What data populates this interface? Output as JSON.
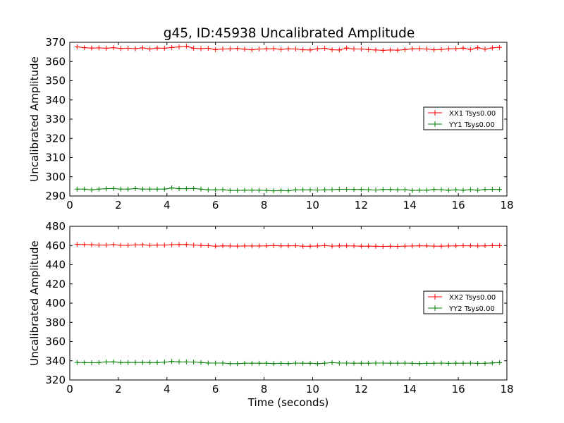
{
  "figure": {
    "title": "g45, ID:45938 Uncalibrated Amplitude"
  },
  "chart_data": [
    {
      "type": "line",
      "title": "g45, ID:45938 Uncalibrated Amplitude",
      "xlabel": "",
      "ylabel": "Uncalibrated Amplitude",
      "xlim": [
        0,
        18
      ],
      "ylim": [
        290,
        370
      ],
      "xticks": [
        0,
        2,
        4,
        6,
        8,
        10,
        12,
        14,
        16,
        18
      ],
      "yticks": [
        290,
        300,
        310,
        320,
        330,
        340,
        350,
        360,
        370
      ],
      "grid": false,
      "legend_position": "center-right",
      "x": [
        0.3,
        0.6,
        0.9,
        1.2,
        1.5,
        1.8,
        2.1,
        2.4,
        2.7,
        3.0,
        3.3,
        3.6,
        3.9,
        4.2,
        4.5,
        4.8,
        5.1,
        5.4,
        5.7,
        6.0,
        6.3,
        6.6,
        6.9,
        7.2,
        7.5,
        7.8,
        8.1,
        8.4,
        8.7,
        9.0,
        9.3,
        9.6,
        9.9,
        10.2,
        10.5,
        10.8,
        11.1,
        11.4,
        11.7,
        12.0,
        12.3,
        12.6,
        12.9,
        13.2,
        13.5,
        13.8,
        14.1,
        14.4,
        14.7,
        15.0,
        15.3,
        15.6,
        15.9,
        16.2,
        16.5,
        16.8,
        17.1,
        17.4,
        17.7
      ],
      "series": [
        {
          "name": "XX1 Tsys0.00",
          "color": "#ff0000",
          "values": [
            367.6,
            367.2,
            367.0,
            367.1,
            366.9,
            367.2,
            366.8,
            366.9,
            366.7,
            367.1,
            366.5,
            367.0,
            366.9,
            367.3,
            367.6,
            368.0,
            366.9,
            366.7,
            366.9,
            366.2,
            366.5,
            366.6,
            366.8,
            366.4,
            366.1,
            366.5,
            366.6,
            366.7,
            366.3,
            366.6,
            366.5,
            366.1,
            366.0,
            366.6,
            366.9,
            366.1,
            366.0,
            367.0,
            366.5,
            366.5,
            366.2,
            366.0,
            365.8,
            366.0,
            365.9,
            366.2,
            366.6,
            366.7,
            366.5,
            366.1,
            366.3,
            366.6,
            366.7,
            367.0,
            366.3,
            367.2,
            366.4,
            367.1,
            367.4
          ]
        },
        {
          "name": "YY1 Tsys0.00",
          "color": "#008000",
          "values": [
            293.6,
            293.6,
            293.2,
            293.6,
            293.8,
            293.9,
            293.6,
            293.6,
            293.9,
            293.6,
            293.6,
            293.6,
            293.6,
            294.2,
            293.8,
            293.8,
            293.9,
            293.6,
            293.2,
            293.2,
            293.3,
            292.9,
            292.9,
            293.0,
            293.0,
            293.0,
            292.9,
            292.7,
            292.9,
            292.7,
            293.2,
            293.2,
            293.2,
            293.1,
            293.2,
            293.3,
            293.5,
            293.5,
            293.4,
            293.4,
            293.3,
            293.1,
            293.4,
            293.4,
            293.2,
            293.3,
            292.9,
            293.0,
            293.0,
            293.4,
            293.3,
            293.0,
            293.2,
            293.0,
            293.3,
            293.0,
            293.4,
            293.5,
            293.4
          ]
        }
      ]
    },
    {
      "type": "line",
      "title": "",
      "xlabel": "Time (seconds)",
      "ylabel": "Uncalibrated Amplitude",
      "xlim": [
        0,
        18
      ],
      "ylim": [
        320,
        480
      ],
      "xticks": [
        0,
        2,
        4,
        6,
        8,
        10,
        12,
        14,
        16,
        18
      ],
      "yticks": [
        320,
        340,
        360,
        380,
        400,
        420,
        440,
        460,
        480
      ],
      "grid": false,
      "legend_position": "center-right",
      "x": [
        0.3,
        0.6,
        0.9,
        1.2,
        1.5,
        1.8,
        2.1,
        2.4,
        2.7,
        3.0,
        3.3,
        3.6,
        3.9,
        4.2,
        4.5,
        4.8,
        5.1,
        5.4,
        5.7,
        6.0,
        6.3,
        6.6,
        6.9,
        7.2,
        7.5,
        7.8,
        8.1,
        8.4,
        8.7,
        9.0,
        9.3,
        9.6,
        9.9,
        10.2,
        10.5,
        10.8,
        11.1,
        11.4,
        11.7,
        12.0,
        12.3,
        12.6,
        12.9,
        13.2,
        13.5,
        13.8,
        14.1,
        14.4,
        14.7,
        15.0,
        15.3,
        15.6,
        15.9,
        16.2,
        16.5,
        16.8,
        17.1,
        17.4,
        17.7
      ],
      "series": [
        {
          "name": "XX2 Tsys0.00",
          "color": "#ff0000",
          "values": [
            461.2,
            461.0,
            460.8,
            460.5,
            460.5,
            460.9,
            460.2,
            460.2,
            460.6,
            460.7,
            460.2,
            460.5,
            460.5,
            460.9,
            461.0,
            461.1,
            460.5,
            460.1,
            459.8,
            459.3,
            459.6,
            459.5,
            459.4,
            459.5,
            459.5,
            459.5,
            459.6,
            459.9,
            459.6,
            459.6,
            459.8,
            459.2,
            459.3,
            459.5,
            459.9,
            459.4,
            459.6,
            459.6,
            459.5,
            459.3,
            459.4,
            459.2,
            459.1,
            459.2,
            459.1,
            459.4,
            459.5,
            459.7,
            459.6,
            459.4,
            459.3,
            459.5,
            459.6,
            459.8,
            459.7,
            459.5,
            459.7,
            459.9,
            459.8
          ]
        },
        {
          "name": "YY2 Tsys0.00",
          "color": "#008000",
          "values": [
            338.3,
            338.1,
            338.0,
            338.2,
            338.8,
            338.9,
            338.2,
            338.3,
            338.3,
            338.3,
            338.2,
            338.2,
            338.6,
            339.3,
            338.9,
            338.8,
            338.7,
            338.3,
            337.7,
            337.6,
            337.6,
            337.1,
            337.1,
            337.4,
            337.4,
            337.4,
            337.4,
            337.1,
            337.3,
            337.1,
            337.6,
            337.4,
            337.4,
            337.0,
            337.5,
            338.1,
            337.6,
            337.6,
            337.5,
            337.5,
            337.5,
            337.6,
            337.6,
            337.5,
            337.5,
            337.6,
            337.3,
            337.1,
            337.3,
            337.4,
            337.6,
            337.3,
            337.5,
            337.5,
            337.6,
            337.3,
            337.4,
            337.8,
            338.1
          ]
        }
      ]
    }
  ]
}
